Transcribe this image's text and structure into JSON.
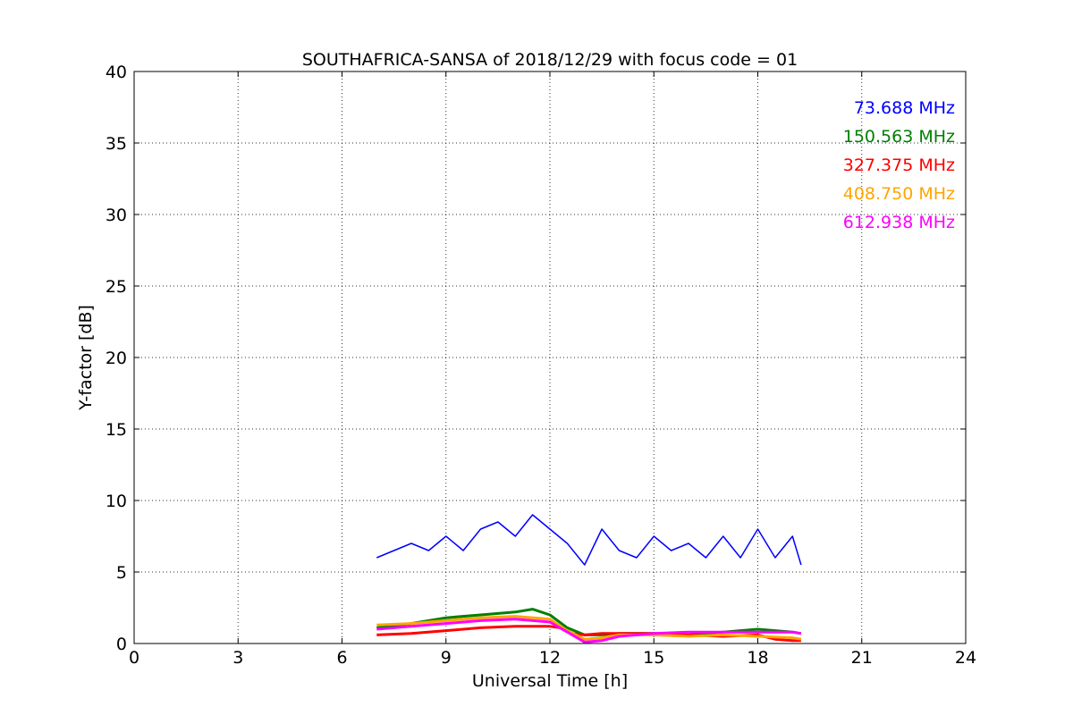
{
  "chart_data": {
    "type": "line",
    "title": "SOUTHAFRICA-SANSA of 2018/12/29 with focus code = 01",
    "xlabel": "Universal Time [h]",
    "ylabel": "Y-factor [dB]",
    "xlim": [
      0,
      24
    ],
    "ylim": [
      0,
      40
    ],
    "xticks": [
      0,
      3,
      6,
      9,
      12,
      15,
      18,
      21,
      24
    ],
    "yticks": [
      0,
      5,
      10,
      15,
      20,
      25,
      30,
      35,
      40
    ],
    "grid": true,
    "legend_position": "top-right",
    "series": [
      {
        "name": "73.688 MHz",
        "color": "#0000ff",
        "x": [
          7.0,
          7.5,
          8.0,
          8.5,
          9.0,
          9.5,
          10.0,
          10.5,
          11.0,
          11.5,
          12.0,
          12.5,
          13.0,
          13.5,
          14.0,
          14.5,
          15.0,
          15.5,
          16.0,
          16.5,
          17.0,
          17.5,
          18.0,
          18.5,
          19.0,
          19.25
        ],
        "y": [
          6.0,
          6.5,
          7.0,
          6.5,
          7.5,
          6.5,
          8.0,
          8.5,
          7.5,
          9.0,
          8.0,
          7.0,
          5.5,
          8.0,
          6.5,
          6.0,
          7.5,
          6.5,
          7.0,
          6.0,
          7.5,
          6.0,
          8.0,
          6.0,
          7.5,
          5.5
        ]
      },
      {
        "name": "150.563 MHz",
        "color": "#008000",
        "x": [
          7.0,
          8.0,
          9.0,
          10.0,
          11.0,
          11.5,
          12.0,
          12.5,
          13.0,
          13.5,
          14.0,
          15.0,
          16.0,
          17.0,
          18.0,
          19.0,
          19.25
        ],
        "y": [
          1.1,
          1.4,
          1.8,
          2.0,
          2.2,
          2.4,
          2.0,
          1.1,
          0.6,
          0.6,
          0.7,
          0.7,
          0.6,
          0.8,
          1.0,
          0.8,
          0.7
        ]
      },
      {
        "name": "327.375 MHz",
        "color": "#ff0000",
        "x": [
          7.0,
          8.0,
          9.0,
          10.0,
          11.0,
          12.0,
          12.3,
          12.6,
          13.0,
          13.5,
          14.0,
          15.0,
          16.0,
          17.0,
          18.0,
          18.5,
          19.0,
          19.25
        ],
        "y": [
          0.6,
          0.7,
          0.9,
          1.1,
          1.2,
          1.2,
          1.1,
          0.7,
          0.6,
          0.7,
          0.7,
          0.7,
          0.6,
          0.5,
          0.6,
          0.3,
          0.2,
          0.2
        ]
      },
      {
        "name": "408.750 MHz",
        "color": "#ffa500",
        "x": [
          7.0,
          8.0,
          9.0,
          10.0,
          11.0,
          12.0,
          12.5,
          13.0,
          13.5,
          14.0,
          15.0,
          16.0,
          17.0,
          18.0,
          19.0,
          19.25
        ],
        "y": [
          1.3,
          1.4,
          1.6,
          1.8,
          1.9,
          1.7,
          0.9,
          0.3,
          0.4,
          0.6,
          0.6,
          0.5,
          0.6,
          0.5,
          0.4,
          0.3
        ]
      },
      {
        "name": "612.938 MHz",
        "color": "#ff00ff",
        "x": [
          7.0,
          8.0,
          9.0,
          10.0,
          11.0,
          12.0,
          12.5,
          13.0,
          13.5,
          14.0,
          15.0,
          16.0,
          17.0,
          18.0,
          19.0,
          19.25
        ],
        "y": [
          1.0,
          1.2,
          1.4,
          1.6,
          1.7,
          1.5,
          0.8,
          0.1,
          0.2,
          0.5,
          0.7,
          0.8,
          0.8,
          0.8,
          0.8,
          0.7
        ]
      }
    ]
  }
}
